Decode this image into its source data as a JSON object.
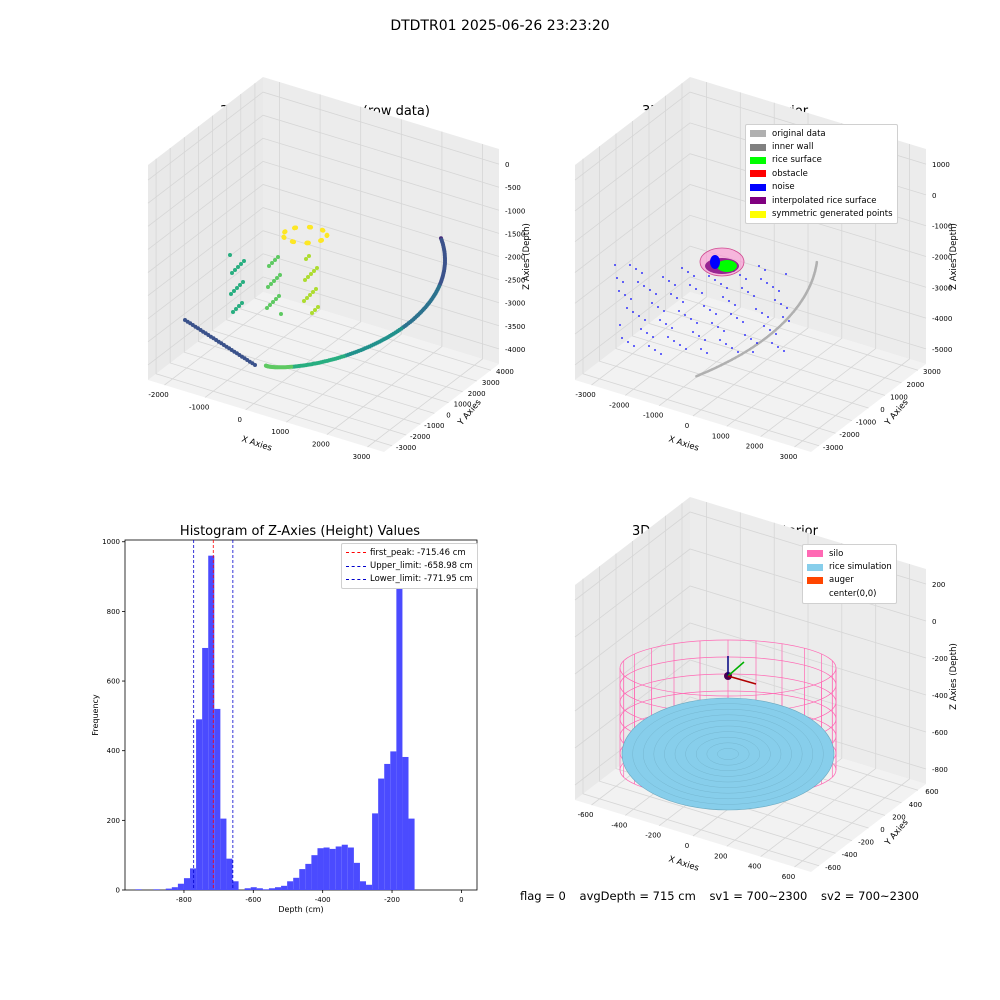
{
  "suptitle": "DTDTR01 2025-06-26 23:23:20",
  "footer": {
    "flag": "flag = 0",
    "avg_depth": "avgDepth = 715 cm",
    "sv1": "sv1 = 700~2300",
    "sv2": "sv2 = 700~2300"
  },
  "colors": {
    "hist_bar": "#4b4bff",
    "first_peak": "#ff0000",
    "limits": "#0000cc",
    "silo": "#ff69b4",
    "rice_simulation": "#87ceeb",
    "auger": "#ff4500"
  },
  "chart_data": [
    {
      "type": "scatter",
      "title": "3D Plot of Silo Interior(row data)",
      "xlabel": "X Axies",
      "ylabel": "Y Axies",
      "zlabel": "Z Axies (Depth)",
      "x_ticks": [
        "-2000",
        "-1000",
        "0",
        "1000",
        "2000",
        "3000"
      ],
      "y_ticks": [
        "-3000",
        "-2000",
        "-1000",
        "0",
        "1000",
        "2000",
        "3000",
        "4000"
      ],
      "z_ticks": [
        "-4000",
        "-3500",
        "-3000",
        "-2500",
        "-2000",
        "-1500",
        "-1000",
        "-500",
        "0"
      ],
      "colormap": "viridis"
    },
    {
      "type": "scatter",
      "title": "3D classify of Silo Interior",
      "xlabel": "X Axies",
      "ylabel": "Y Axies",
      "zlabel": "Z Axies (Depth)",
      "x_ticks": [
        "-3000",
        "-2000",
        "-1000",
        "0",
        "1000",
        "2000",
        "3000"
      ],
      "y_ticks": [
        "-3000",
        "-2000",
        "-1000",
        "0",
        "1000",
        "2000",
        "3000"
      ],
      "z_ticks": [
        "-5000",
        "-4000",
        "-3000",
        "-2000",
        "-1000",
        "0",
        "1000"
      ],
      "legend_position": "top-right",
      "legend": [
        {
          "label": "original data",
          "color": "#b0b0b0"
        },
        {
          "label": "inner wall",
          "color": "#808080"
        },
        {
          "label": "rice surface",
          "color": "#00ff00"
        },
        {
          "label": "obstacle",
          "color": "#ff0000"
        },
        {
          "label": "noise",
          "color": "#0000ff"
        },
        {
          "label": "interpolated rice surface",
          "color": "#800080"
        },
        {
          "label": "symmetric generated points",
          "color": "#ffff00"
        }
      ]
    },
    {
      "type": "bar",
      "title": "Histogram of Z-Axies (Height) Values",
      "xlabel": "Depth (cm)",
      "ylabel": "Frequency",
      "xlim": [
        -970,
        45
      ],
      "ylim": [
        0,
        1005
      ],
      "x_ticks": [
        -800,
        -600,
        -400,
        -200,
        0
      ],
      "y_ticks": [
        0,
        200,
        400,
        600,
        800,
        1000
      ],
      "bin_width": 17.5,
      "bin_starts": [
        -940,
        -922.5,
        -905,
        -887.5,
        -870,
        -852.5,
        -835,
        -817.5,
        -800,
        -782.5,
        -765,
        -747.5,
        -730,
        -712.5,
        -695,
        -677.5,
        -660,
        -642.5,
        -625,
        -607.5,
        -590,
        -572.5,
        -555,
        -537.5,
        -520,
        -502.5,
        -485,
        -467.5,
        -450,
        -432.5,
        -415,
        -397.5,
        -380,
        -362.5,
        -345,
        -327.5,
        -310,
        -292.5,
        -275,
        -257.5,
        -240,
        -222.5,
        -205,
        -187.5,
        -170,
        -152.5,
        -135,
        -117.5,
        -100,
        -82.5,
        -65,
        -47.5,
        -30,
        -12.5
      ],
      "values": [
        2,
        0,
        0,
        2,
        0,
        4,
        8,
        18,
        34,
        62,
        490,
        695,
        960,
        520,
        205,
        90,
        25,
        0,
        5,
        8,
        5,
        2,
        5,
        8,
        12,
        25,
        35,
        60,
        75,
        100,
        120,
        122,
        118,
        125,
        130,
        122,
        78,
        25,
        15,
        220,
        320,
        362,
        398,
        940,
        382,
        205,
        0,
        0,
        0,
        0,
        0,
        0,
        0,
        0
      ],
      "lines": [
        {
          "label": "first_peak: -715.46 cm",
          "x": -715.46,
          "color": "#ff0000"
        },
        {
          "label": "Upper_limit: -658.98 cm",
          "x": -658.98,
          "color": "#0000cc"
        },
        {
          "label": "Lower_limit: -771.95 cm",
          "x": -771.95,
          "color": "#0000cc"
        }
      ],
      "legend_position": "top-right"
    },
    {
      "type": "scatter",
      "title": "3D simulation of Silo Interior",
      "xlabel": "X Axies",
      "ylabel": "Y Axies",
      "zlabel": "Z Axies (Depth)",
      "x_ticks": [
        "-600",
        "-400",
        "-200",
        "0",
        "200",
        "400",
        "600"
      ],
      "y_ticks": [
        "-600",
        "-400",
        "-200",
        "0",
        "200",
        "400",
        "600"
      ],
      "z_ticks": [
        "-800",
        "-600",
        "-400",
        "-200",
        "0",
        "200"
      ],
      "legend_position": "top-right",
      "legend": [
        {
          "label": "silo",
          "color": "#ff69b4"
        },
        {
          "label": "rice simulation",
          "color": "#87ceeb"
        },
        {
          "label": "auger",
          "color": "#ff4500"
        },
        {
          "label": "center(0,0)",
          "color": "#ffffff"
        }
      ]
    }
  ]
}
